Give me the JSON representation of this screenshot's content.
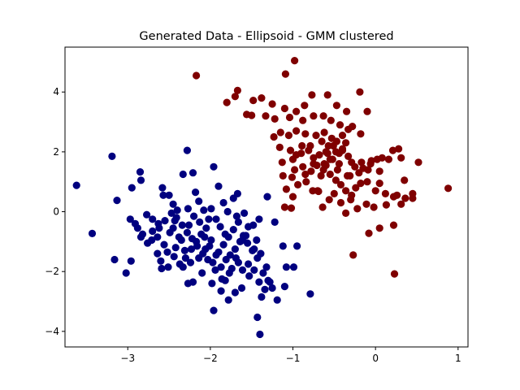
{
  "chart_data": {
    "type": "scatter",
    "title": "Generated Data - Ellipsoid - GMM clustered",
    "xlabel": "",
    "ylabel": "",
    "xlim": [
      -3.76,
      1.12
    ],
    "ylim": [
      -4.52,
      5.5
    ],
    "grid": false,
    "x_ticks": [
      -3,
      -2,
      -1,
      0,
      1
    ],
    "y_ticks": [
      -4,
      -2,
      0,
      2,
      4
    ],
    "series": [
      {
        "color": "#7f0000",
        "points": [
          [
            -2.17,
            4.55
          ],
          [
            -1.67,
            4.05
          ],
          [
            -1.7,
            3.85
          ],
          [
            -1.8,
            3.65
          ],
          [
            -1.48,
            3.72
          ],
          [
            -1.38,
            3.8
          ],
          [
            -1.25,
            3.6
          ],
          [
            -1.1,
            3.45
          ],
          [
            -0.96,
            3.35
          ],
          [
            -0.86,
            3.55
          ],
          [
            -0.77,
            3.9
          ],
          [
            -0.58,
            3.9
          ],
          [
            -0.47,
            3.55
          ],
          [
            -0.35,
            3.35
          ],
          [
            -0.19,
            4.0
          ],
          [
            -0.1,
            3.35
          ],
          [
            -0.98,
            5.05
          ],
          [
            -1.09,
            4.6
          ],
          [
            -1.56,
            3.25
          ],
          [
            -1.5,
            3.22
          ],
          [
            -1.33,
            3.2
          ],
          [
            -1.22,
            3.1
          ],
          [
            -1.04,
            3.15
          ],
          [
            -0.88,
            3.05
          ],
          [
            -0.75,
            3.2
          ],
          [
            -0.63,
            3.2
          ],
          [
            -0.54,
            3.05
          ],
          [
            -0.43,
            2.9
          ],
          [
            -0.28,
            2.85
          ],
          [
            -0.18,
            2.6
          ],
          [
            -1.23,
            2.5
          ],
          [
            -1.15,
            2.65
          ],
          [
            -1.05,
            2.55
          ],
          [
            -0.96,
            2.7
          ],
          [
            -0.85,
            2.6
          ],
          [
            -0.72,
            2.55
          ],
          [
            -0.62,
            2.65
          ],
          [
            -0.53,
            2.45
          ],
          [
            -0.4,
            2.55
          ],
          [
            -0.33,
            2.75
          ],
          [
            -1.16,
            2.15
          ],
          [
            -1.03,
            2.05
          ],
          [
            -0.96,
            1.9
          ],
          [
            -0.89,
            2.2
          ],
          [
            -0.81,
            2.05
          ],
          [
            -0.75,
            1.8
          ],
          [
            -0.68,
            1.9
          ],
          [
            -0.6,
            2.0
          ],
          [
            -0.55,
            1.75
          ],
          [
            -0.51,
            2.2
          ],
          [
            -0.47,
            2.35
          ],
          [
            -0.44,
            1.95
          ],
          [
            -0.4,
            2.1
          ],
          [
            -0.36,
            2.3
          ],
          [
            -0.33,
            1.85
          ],
          [
            -0.29,
            1.65
          ],
          [
            -0.25,
            1.5
          ],
          [
            -0.2,
            1.3
          ],
          [
            -0.15,
            1.45
          ],
          [
            -0.09,
            1.4
          ],
          [
            -0.05,
            1.7
          ],
          [
            0.02,
            1.75
          ],
          [
            0.08,
            1.8
          ],
          [
            0.16,
            1.75
          ],
          [
            0.21,
            2.05
          ],
          [
            0.28,
            2.1
          ],
          [
            0.31,
            1.8
          ],
          [
            0.52,
            1.65
          ],
          [
            0.88,
            0.78
          ],
          [
            0.45,
            0.45
          ],
          [
            0.36,
            0.45
          ],
          [
            0.31,
            0.25
          ],
          [
            0.22,
            -0.45
          ],
          [
            0.23,
            -2.08
          ],
          [
            -0.27,
            -1.45
          ],
          [
            -0.08,
            -0.72
          ],
          [
            0.05,
            -0.55
          ],
          [
            -0.02,
            0.15
          ],
          [
            -0.11,
            0.25
          ],
          [
            -0.22,
            0.1
          ],
          [
            -0.36,
            -0.05
          ],
          [
            -0.42,
            0.3
          ],
          [
            -0.5,
            0.6
          ],
          [
            -0.56,
            0.4
          ],
          [
            -0.64,
            0.15
          ],
          [
            -0.7,
            0.7
          ],
          [
            -0.76,
            0.7
          ],
          [
            -0.84,
            1.0
          ],
          [
            -0.94,
            0.9
          ],
          [
            -1.01,
            1.15
          ],
          [
            -1.12,
            1.2
          ],
          [
            -0.98,
            1.4
          ],
          [
            -0.88,
            1.5
          ],
          [
            -0.78,
            1.35
          ],
          [
            -0.71,
            1.55
          ],
          [
            -0.63,
            1.4
          ],
          [
            -0.55,
            1.25
          ],
          [
            -0.48,
            1.05
          ],
          [
            -0.42,
            0.9
          ],
          [
            -0.36,
            0.7
          ],
          [
            -0.29,
            0.55
          ],
          [
            -0.24,
            0.8
          ],
          [
            -0.18,
            0.95
          ],
          [
            -0.1,
            1.0
          ],
          [
            0.0,
            0.7
          ],
          [
            0.05,
            0.95
          ],
          [
            0.12,
            0.6
          ],
          [
            0.22,
            0.5
          ],
          [
            0.35,
            1.05
          ],
          [
            0.45,
            0.6
          ],
          [
            -0.34,
            1.2
          ],
          [
            -0.44,
            1.6
          ],
          [
            -0.52,
            1.75
          ],
          [
            -0.6,
            1.55
          ],
          [
            -0.66,
            1.2
          ],
          [
            -0.75,
            1.6
          ],
          [
            -0.85,
            1.25
          ],
          [
            -1.08,
            0.75
          ],
          [
            -1.0,
            0.5
          ],
          [
            -1.1,
            0.15
          ],
          [
            -1.02,
            0.12
          ],
          [
            -0.69,
            0.68
          ],
          [
            -0.3,
            0.4
          ],
          [
            0.13,
            0.23
          ],
          [
            0.26,
            0.55
          ],
          [
            -0.46,
            1.4
          ],
          [
            -0.57,
            2.2
          ],
          [
            -0.65,
            2.35
          ],
          [
            -0.79,
            2.2
          ],
          [
            -0.9,
            1.95
          ],
          [
            -1.0,
            1.75
          ],
          [
            -1.13,
            1.65
          ],
          [
            -0.4,
            2.05
          ],
          [
            -0.48,
            2.0
          ],
          [
            -0.58,
            1.95
          ],
          [
            -0.31,
            1.2
          ],
          [
            0.05,
            1.35
          ],
          [
            -0.06,
            1.6
          ],
          [
            -0.17,
            1.65
          ],
          [
            -0.62,
            1.6
          ]
        ]
      },
      {
        "color": "#00007f",
        "points": [
          [
            -3.62,
            0.88
          ],
          [
            -3.43,
            -0.73
          ],
          [
            -3.19,
            1.85
          ],
          [
            -3.13,
            0.38
          ],
          [
            -3.16,
            -1.6
          ],
          [
            -3.02,
            -2.05
          ],
          [
            -2.95,
            0.8
          ],
          [
            -2.85,
            1.33
          ],
          [
            -2.84,
            1.05
          ],
          [
            -2.97,
            -0.25
          ],
          [
            -2.88,
            -0.55
          ],
          [
            -2.82,
            -0.75
          ],
          [
            -2.76,
            -1.05
          ],
          [
            -2.96,
            -1.65
          ],
          [
            -2.7,
            -0.25
          ],
          [
            -2.64,
            -0.85
          ],
          [
            -2.58,
            0.8
          ],
          [
            -2.57,
            0.55
          ],
          [
            -2.5,
            0.55
          ],
          [
            -2.45,
            0.25
          ],
          [
            -2.4,
            0.05
          ],
          [
            -2.33,
            1.25
          ],
          [
            -2.28,
            2.05
          ],
          [
            -2.21,
            1.3
          ],
          [
            -2.18,
            0.65
          ],
          [
            -2.14,
            0.35
          ],
          [
            -2.08,
            0.05
          ],
          [
            -2.02,
            -0.25
          ],
          [
            -1.96,
            1.5
          ],
          [
            -1.9,
            0.85
          ],
          [
            -1.84,
            0.3
          ],
          [
            -1.79,
            0.0
          ],
          [
            -1.72,
            0.45
          ],
          [
            -1.67,
            0.6
          ],
          [
            -1.59,
            -0.05
          ],
          [
            -1.54,
            -0.5
          ],
          [
            -1.48,
            -0.45
          ],
          [
            -1.41,
            -0.25
          ],
          [
            -1.31,
            0.5
          ],
          [
            -1.22,
            -0.35
          ],
          [
            -1.12,
            -1.15
          ],
          [
            -1.08,
            -1.85
          ],
          [
            -1.1,
            -2.5
          ],
          [
            -0.99,
            -1.85
          ],
          [
            -0.95,
            -1.15
          ],
          [
            -0.79,
            -2.75
          ],
          [
            -1.43,
            -3.53
          ],
          [
            -1.4,
            -4.1
          ],
          [
            -1.38,
            -2.85
          ],
          [
            -1.28,
            -2.35
          ],
          [
            -1.32,
            -1.85
          ],
          [
            -1.39,
            -1.4
          ],
          [
            -1.47,
            -1.25
          ],
          [
            -1.53,
            -2.15
          ],
          [
            -1.61,
            -1.95
          ],
          [
            -1.69,
            -1.55
          ],
          [
            -1.77,
            -2.05
          ],
          [
            -1.82,
            -2.3
          ],
          [
            -1.87,
            -2.65
          ],
          [
            -1.96,
            -3.3
          ],
          [
            -1.98,
            -2.4
          ],
          [
            -2.1,
            -2.05
          ],
          [
            -2.21,
            -2.35
          ],
          [
            -2.27,
            -2.4
          ],
          [
            -2.33,
            -1.85
          ],
          [
            -2.44,
            -1.5
          ],
          [
            -2.51,
            -1.85
          ],
          [
            -2.59,
            -1.9
          ],
          [
            -2.64,
            -1.4
          ],
          [
            -2.71,
            -0.95
          ],
          [
            -2.62,
            -0.55
          ],
          [
            -2.55,
            -0.3
          ],
          [
            -2.47,
            -0.05
          ],
          [
            -2.41,
            -0.2
          ],
          [
            -2.34,
            -0.45
          ],
          [
            -2.28,
            -0.7
          ],
          [
            -2.22,
            -0.9
          ],
          [
            -2.16,
            -1.15
          ],
          [
            -2.09,
            -1.4
          ],
          [
            -2.03,
            -1.6
          ],
          [
            -1.97,
            -1.7
          ],
          [
            -1.9,
            -1.35
          ],
          [
            -1.84,
            -1.1
          ],
          [
            -1.78,
            -0.85
          ],
          [
            -1.72,
            -0.6
          ],
          [
            -1.66,
            -0.35
          ],
          [
            -1.6,
            -0.8
          ],
          [
            -1.55,
            -1.05
          ],
          [
            -1.49,
            -1.3
          ],
          [
            -1.43,
            -1.55
          ],
          [
            -1.36,
            -2.05
          ],
          [
            -1.3,
            -2.3
          ],
          [
            -1.25,
            -2.55
          ],
          [
            -1.19,
            -2.95
          ],
          [
            -2.13,
            -0.35
          ],
          [
            -2.2,
            -0.15
          ],
          [
            -2.27,
            0.1
          ],
          [
            -2.35,
            -0.95
          ],
          [
            -2.42,
            -1.2
          ],
          [
            -2.49,
            -0.7
          ],
          [
            -2.56,
            -1.1
          ],
          [
            -2.63,
            -0.4
          ],
          [
            -2.7,
            -0.65
          ],
          [
            -2.77,
            -0.1
          ],
          [
            -2.84,
            -0.85
          ],
          [
            -2.91,
            -0.4
          ],
          [
            -1.62,
            -2.55
          ],
          [
            -1.7,
            -2.7
          ],
          [
            -1.78,
            -2.95
          ],
          [
            -1.86,
            -2.25
          ],
          [
            -1.94,
            -1.95
          ],
          [
            -2.01,
            -1.15
          ],
          [
            -2.07,
            -0.85
          ],
          [
            -2.14,
            -1.55
          ],
          [
            -2.24,
            -1.7
          ],
          [
            -2.31,
            -1.3
          ],
          [
            -2.38,
            -0.85
          ],
          [
            -2.45,
            -0.55
          ],
          [
            -2.52,
            -1.35
          ],
          [
            -2.6,
            -1.65
          ],
          [
            -1.54,
            -1.75
          ],
          [
            -1.47,
            -1.95
          ],
          [
            -1.41,
            -2.35
          ],
          [
            -1.34,
            -2.6
          ],
          [
            -1.57,
            -0.8
          ],
          [
            -1.64,
            -1.0
          ],
          [
            -1.7,
            -1.25
          ],
          [
            -1.76,
            -1.45
          ],
          [
            -1.82,
            -0.75
          ],
          [
            -1.88,
            -0.5
          ],
          [
            -1.93,
            -0.25
          ],
          [
            -1.99,
            0.1
          ],
          [
            -2.05,
            -0.55
          ],
          [
            -2.11,
            -0.75
          ],
          [
            -2.17,
            -1.0
          ],
          [
            -2.23,
            -1.25
          ],
          [
            -2.3,
            -1.55
          ],
          [
            -2.37,
            -1.75
          ],
          [
            -2.43,
            -0.3
          ],
          [
            -1.66,
            -1.7
          ],
          [
            -1.74,
            -1.9
          ],
          [
            -1.81,
            -1.6
          ],
          [
            -1.87,
            -1.85
          ],
          [
            -1.93,
            -1.45
          ],
          [
            -1.68,
            -0.15
          ],
          [
            -1.61,
            -0.95
          ],
          [
            -1.44,
            -0.95
          ],
          [
            -2.06,
            -1.25
          ],
          [
            -1.99,
            -0.95
          ],
          [
            -2.26,
            -0.45
          ]
        ]
      }
    ]
  }
}
